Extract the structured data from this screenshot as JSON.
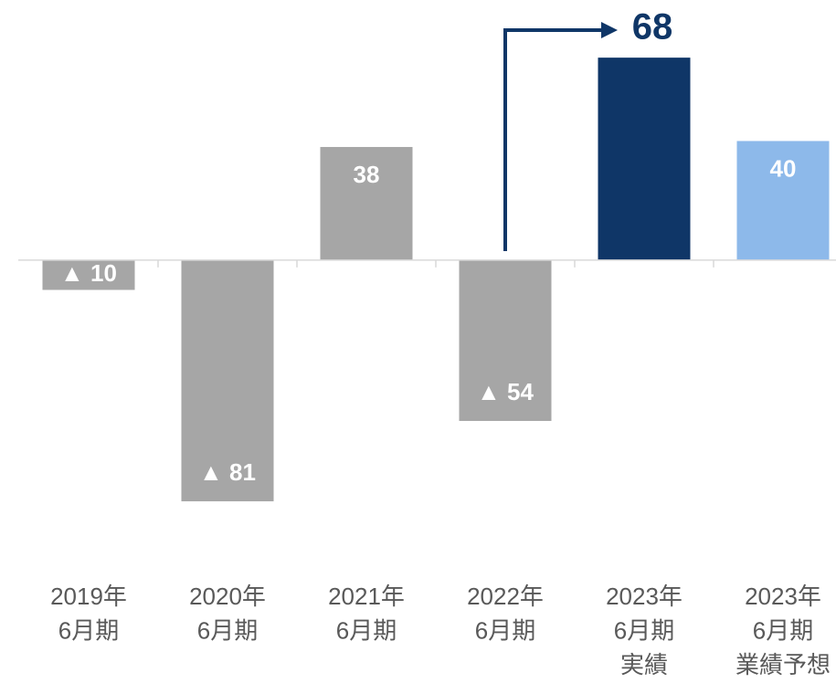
{
  "chart_data": {
    "type": "bar",
    "categories": [
      [
        "2019年",
        "6月期"
      ],
      [
        "2020年",
        "6月期"
      ],
      [
        "2021年",
        "6月期"
      ],
      [
        "2022年",
        "6月期"
      ],
      [
        "2023年",
        "6月期",
        "実績"
      ],
      [
        "2023年",
        "6月期",
        "業績予想"
      ]
    ],
    "values": [
      -10,
      -81,
      38,
      -54,
      68,
      40
    ],
    "value_labels": [
      "▲ 10",
      "▲ 81",
      "38",
      "▲ 54",
      "68",
      "40"
    ],
    "colors": [
      "#a6a6a6",
      "#a6a6a6",
      "#a6a6a6",
      "#a6a6a6",
      "#0f3667",
      "#8db9ea"
    ],
    "ylim": [
      -100,
      80
    ]
  }
}
